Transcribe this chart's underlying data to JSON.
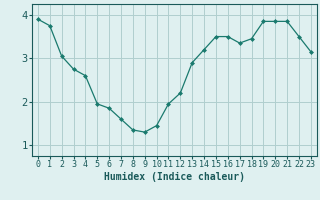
{
  "x": [
    0,
    1,
    2,
    3,
    4,
    5,
    6,
    7,
    8,
    9,
    10,
    11,
    12,
    13,
    14,
    15,
    16,
    17,
    18,
    19,
    20,
    21,
    22,
    23
  ],
  "y": [
    3.9,
    3.75,
    3.05,
    2.75,
    2.6,
    1.95,
    1.85,
    1.6,
    1.35,
    1.3,
    1.45,
    1.95,
    2.2,
    2.9,
    3.2,
    3.5,
    3.5,
    3.35,
    3.45,
    3.85,
    3.85,
    3.85,
    3.5,
    3.15
  ],
  "line_color": "#1a7a6e",
  "marker": "D",
  "marker_size": 2.0,
  "bg_color": "#dff0f0",
  "grid_color": "#b0cece",
  "xlabel": "Humidex (Indice chaleur)",
  "xlim": [
    -0.5,
    23.5
  ],
  "ylim": [
    0.75,
    4.25
  ],
  "yticks": [
    1,
    2,
    3,
    4
  ],
  "xticks": [
    0,
    1,
    2,
    3,
    4,
    5,
    6,
    7,
    8,
    9,
    10,
    11,
    12,
    13,
    14,
    15,
    16,
    17,
    18,
    19,
    20,
    21,
    22,
    23
  ],
  "tick_label_color": "#1a5a5a",
  "axis_color": "#1a5a5a",
  "xlabel_fontsize": 7,
  "tick_fontsize": 6.0,
  "ytick_fontsize": 7.5,
  "linewidth": 0.9
}
